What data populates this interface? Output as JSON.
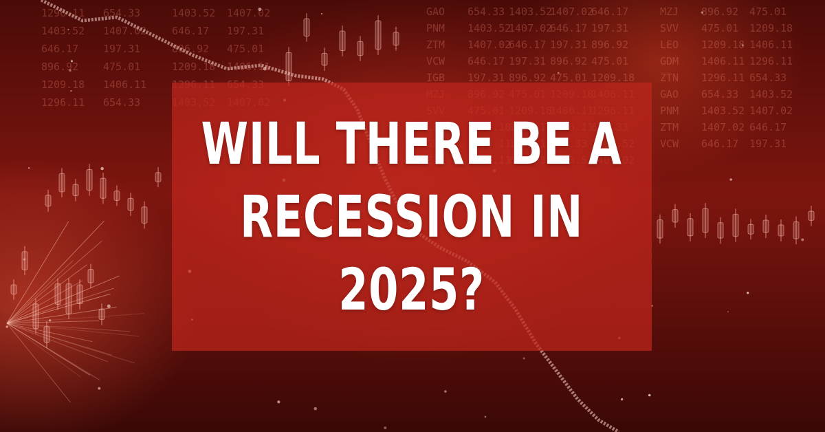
{
  "headline": {
    "line1": "WILL THERE BE A",
    "line2": "RECESSION IN",
    "line3": "2025?"
  },
  "background": {
    "ticker_symbols": [
      "GAO",
      "PNM",
      "ZTM",
      "VCW",
      "IGB",
      "MZJ",
      "SVV",
      "LEO",
      "GDM",
      "ZTN"
    ],
    "ticker_values": [
      "1296.11",
      "654.33",
      "1403.52",
      "1407.02",
      "646.17",
      "197.31",
      "896.92",
      "475.01",
      "1209.18",
      "1406.11"
    ],
    "colors": {
      "base": "#4a0b08",
      "overlay": "#be261c",
      "glow": "#ff5a3c",
      "text": "#ffffff"
    }
  }
}
